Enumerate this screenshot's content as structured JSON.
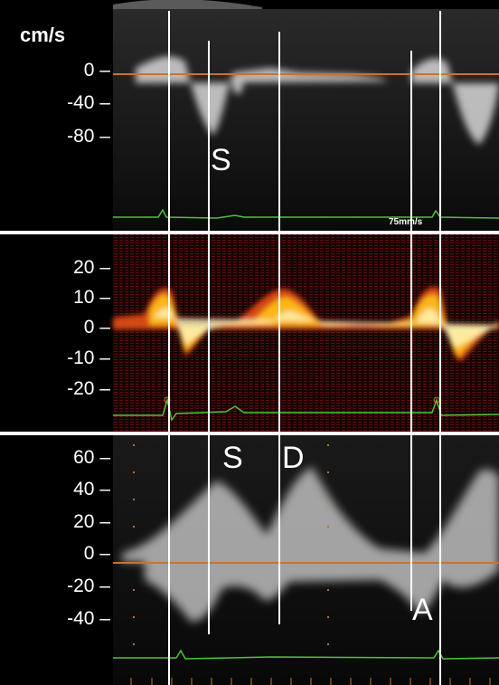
{
  "panel1": {
    "unit": "cm/s",
    "ticks": [
      "0 –",
      "-40 –",
      "-80 –"
    ],
    "wave_label": "S",
    "sweep_speed": "75mm/s"
  },
  "panel2": {
    "ticks": [
      "20 –",
      "10 –",
      "0 –",
      "-10 –",
      "-20 –"
    ]
  },
  "panel3": {
    "ticks": [
      "60 –",
      "40 –",
      "20 –",
      "0 –",
      "-20 –",
      "-40 –"
    ],
    "wave_labels": [
      "S",
      "D",
      "A"
    ]
  },
  "colors": {
    "baseline": "#c8742c",
    "ecg": "#4ec23a",
    "marker": "#ffffff",
    "separator": "#ffffff"
  }
}
